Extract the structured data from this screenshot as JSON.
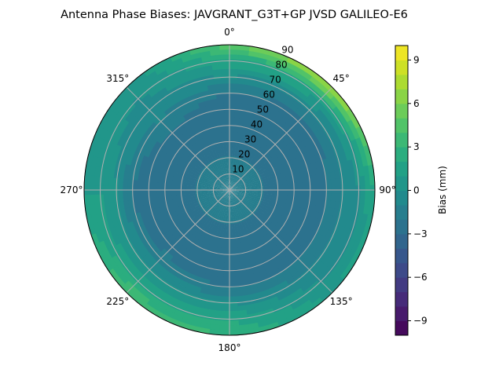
{
  "chart_data": {
    "type": "heatmap",
    "subtype": "polar-filled-contour",
    "title": "Antenna Phase Biases: JAVGRANT_G3T+GP JVSD GALILEO-E6",
    "angular_ticks": [
      "0°",
      "45°",
      "90°",
      "135°",
      "180°",
      "225°",
      "270°",
      "315°"
    ],
    "radial_ticks": [
      "10",
      "20",
      "30",
      "40",
      "50",
      "60",
      "70",
      "80",
      "90"
    ],
    "radial_range": [
      0,
      90
    ],
    "angular_direction": "clockwise",
    "angular_zero": "top",
    "grid": true,
    "azimuths": [
      0,
      45,
      90,
      135,
      180,
      225,
      270,
      315
    ],
    "zeniths": [
      0,
      10,
      20,
      30,
      40,
      50,
      60,
      70,
      80,
      90
    ],
    "values": [
      [
        -1,
        -1.5,
        -2,
        -2.5,
        -3,
        -3,
        -2,
        0,
        2,
        5
      ],
      [
        -1,
        -1.5,
        -2,
        -3,
        -3,
        -3,
        -2.5,
        -1,
        2,
        8
      ],
      [
        -1,
        -1.5,
        -2,
        -3,
        -3,
        -3,
        -2,
        -1,
        0,
        2
      ],
      [
        -1,
        -1.5,
        -2,
        -2.5,
        -3,
        -3,
        -2,
        -1,
        0,
        1
      ],
      [
        -1,
        -1.5,
        -2,
        -2.5,
        -3,
        -3,
        -2,
        0,
        2,
        3
      ],
      [
        -1,
        -1.5,
        -2,
        -2.5,
        -3,
        -2.5,
        -1.5,
        0,
        2,
        4
      ],
      [
        -1,
        -1.5,
        -2,
        -3,
        -3,
        -3,
        -2,
        0,
        1,
        1
      ],
      [
        -1,
        -1.5,
        -2,
        -3,
        -3,
        -2,
        -1,
        -0.5,
        0,
        0
      ]
    ],
    "colormap": "viridis",
    "colorbar": {
      "label": "Bias (mm)",
      "range": [
        -10,
        10
      ],
      "level_step": 1,
      "ticks": [
        "−9",
        "−6",
        "−3",
        "0",
        "3",
        "6",
        "9"
      ],
      "tick_values": [
        -9,
        -6,
        -3,
        0,
        3,
        6,
        9
      ]
    }
  }
}
